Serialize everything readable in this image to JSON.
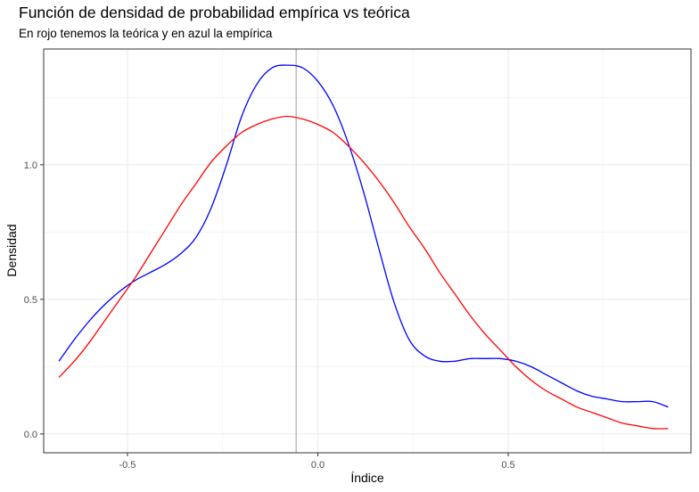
{
  "chart_data": {
    "type": "line",
    "title": "Función de densidad de probabilidad empírica vs teórica",
    "subtitle": "En rojo tenemos la teórica y en azul la empírica",
    "xlabel": "Índice",
    "ylabel": "Densidad",
    "xlim": [
      -0.72,
      0.98
    ],
    "ylim": [
      -0.07,
      1.43
    ],
    "x_ticks": [
      -0.5,
      0.0,
      0.5
    ],
    "x_tick_labels": [
      "-0.5",
      "0.0",
      "0.5"
    ],
    "y_ticks": [
      0.0,
      0.5,
      1.0
    ],
    "y_tick_labels": [
      "0.0",
      "0.5",
      "1.0"
    ],
    "grid": true,
    "vline": {
      "x": -0.057,
      "color": "#999999"
    },
    "series": [
      {
        "color": "#0000ff",
        "x": [
          -0.68,
          -0.64,
          -0.6,
          -0.56,
          -0.52,
          -0.48,
          -0.44,
          -0.4,
          -0.36,
          -0.32,
          -0.28,
          -0.24,
          -0.2,
          -0.16,
          -0.12,
          -0.08,
          -0.04,
          0.0,
          0.04,
          0.08,
          0.12,
          0.16,
          0.2,
          0.24,
          0.28,
          0.32,
          0.36,
          0.4,
          0.44,
          0.48,
          0.52,
          0.56,
          0.6,
          0.64,
          0.68,
          0.72,
          0.76,
          0.8,
          0.84,
          0.88,
          0.92
        ],
        "y": [
          0.27,
          0.35,
          0.42,
          0.48,
          0.53,
          0.57,
          0.6,
          0.63,
          0.67,
          0.73,
          0.84,
          1.0,
          1.18,
          1.3,
          1.36,
          1.37,
          1.36,
          1.31,
          1.22,
          1.08,
          0.9,
          0.69,
          0.49,
          0.35,
          0.29,
          0.27,
          0.27,
          0.28,
          0.28,
          0.28,
          0.27,
          0.25,
          0.22,
          0.19,
          0.16,
          0.14,
          0.13,
          0.12,
          0.12,
          0.12,
          0.1
        ]
      },
      {
        "color": "#ff0000",
        "x": [
          -0.68,
          -0.64,
          -0.6,
          -0.56,
          -0.52,
          -0.48,
          -0.44,
          -0.4,
          -0.36,
          -0.32,
          -0.28,
          -0.24,
          -0.2,
          -0.16,
          -0.12,
          -0.08,
          -0.04,
          0.0,
          0.04,
          0.08,
          0.12,
          0.16,
          0.2,
          0.24,
          0.28,
          0.32,
          0.36,
          0.4,
          0.44,
          0.48,
          0.52,
          0.56,
          0.6,
          0.64,
          0.68,
          0.72,
          0.76,
          0.8,
          0.84,
          0.88,
          0.92
        ],
        "y": [
          0.21,
          0.27,
          0.34,
          0.42,
          0.5,
          0.58,
          0.67,
          0.76,
          0.85,
          0.93,
          1.01,
          1.07,
          1.12,
          1.15,
          1.17,
          1.18,
          1.17,
          1.15,
          1.12,
          1.07,
          1.01,
          0.94,
          0.86,
          0.77,
          0.69,
          0.6,
          0.52,
          0.44,
          0.37,
          0.31,
          0.25,
          0.2,
          0.16,
          0.13,
          0.1,
          0.08,
          0.06,
          0.04,
          0.03,
          0.02,
          0.02
        ]
      }
    ]
  }
}
